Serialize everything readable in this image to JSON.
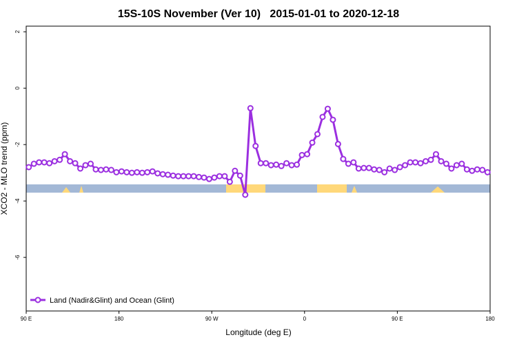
{
  "chart_data": {
    "type": "line",
    "title": "15S-10S November (Ver 10)   2015-01-01 to 2020-12-18",
    "x_label": "Longitude (deg E)",
    "y_label": "XCO2 - MLO trend (ppm)",
    "xlim": [
      90,
      540
    ],
    "xticks": [
      {
        "value": 90,
        "label": "90 E"
      },
      180,
      {
        "value": 270,
        "label": "90 W"
      },
      {
        "value": 360,
        "label": "0"
      },
      {
        "value": 450,
        "label": "90 E"
      },
      {
        "value": 540,
        "label": "180"
      }
    ],
    "ylim": [
      -7.9,
      2.2
    ],
    "yticks": [
      2,
      0,
      -2,
      -4,
      -6
    ],
    "legend": "bottom-left",
    "x": [
      92.5,
      97.5,
      102.5,
      107.5,
      112.5,
      117.5,
      122.5,
      127.5,
      132.5,
      137.5,
      142.5,
      147.5,
      152.5,
      157.5,
      162.5,
      167.5,
      172.5,
      177.5,
      182.5,
      187.5,
      192.5,
      197.5,
      202.5,
      207.5,
      212.5,
      217.5,
      222.5,
      227.5,
      232.5,
      237.5,
      242.5,
      247.5,
      252.5,
      257.5,
      262.5,
      267.5,
      272.5,
      277.5,
      282.5,
      287.5,
      292.5,
      297.5,
      302.5,
      307.5,
      312.5,
      317.5,
      322.5,
      327.5,
      332.5,
      337.5,
      342.5,
      347.5,
      352.5,
      357.5,
      362.5,
      367.5,
      372.5,
      377.5,
      382.5,
      387.5,
      392.5,
      397.5,
      402.5,
      407.5,
      412.5,
      417.5,
      422.5,
      427.5,
      432.5,
      437.5,
      442.5,
      447.5,
      452.5,
      457.5,
      462.5,
      467.5,
      472.5,
      477.5,
      482.5,
      487.5,
      492.5,
      497.5,
      502.5,
      507.5,
      512.5,
      517.5,
      522.5,
      527.5,
      532.5,
      537.5
    ],
    "series": [
      {
        "name": "Land (Nadir&Glint) and Ocean (Glint)",
        "color": "#9b2fe0",
        "values": [
          -2.8,
          -2.68,
          -2.63,
          -2.63,
          -2.66,
          -2.59,
          -2.54,
          -2.34,
          -2.59,
          -2.66,
          -2.85,
          -2.73,
          -2.68,
          -2.88,
          -2.9,
          -2.88,
          -2.9,
          -2.98,
          -2.95,
          -2.98,
          -3.0,
          -2.98,
          -3.0,
          -2.98,
          -2.95,
          -3.02,
          -3.05,
          -3.07,
          -3.1,
          -3.12,
          -3.12,
          -3.12,
          -3.12,
          -3.15,
          -3.17,
          -3.22,
          -3.17,
          -3.12,
          -3.12,
          -3.32,
          -2.93,
          -3.1,
          -3.78,
          -0.71,
          -2.05,
          -2.66,
          -2.66,
          -2.73,
          -2.71,
          -2.76,
          -2.66,
          -2.73,
          -2.71,
          -2.37,
          -2.34,
          -1.93,
          -1.63,
          -1.02,
          -0.73,
          -1.12,
          -1.98,
          -2.51,
          -2.68,
          -2.63,
          -2.85,
          -2.83,
          -2.83,
          -2.88,
          -2.9,
          -2.98,
          -2.85,
          -2.9,
          -2.8,
          -2.73,
          -2.63,
          -2.63,
          -2.66,
          -2.59,
          -2.54,
          -2.34,
          -2.59,
          -2.68,
          -2.85,
          -2.73,
          -2.68,
          -2.88,
          -2.93,
          -2.88,
          -2.9,
          -2.98
        ]
      }
    ]
  }
}
